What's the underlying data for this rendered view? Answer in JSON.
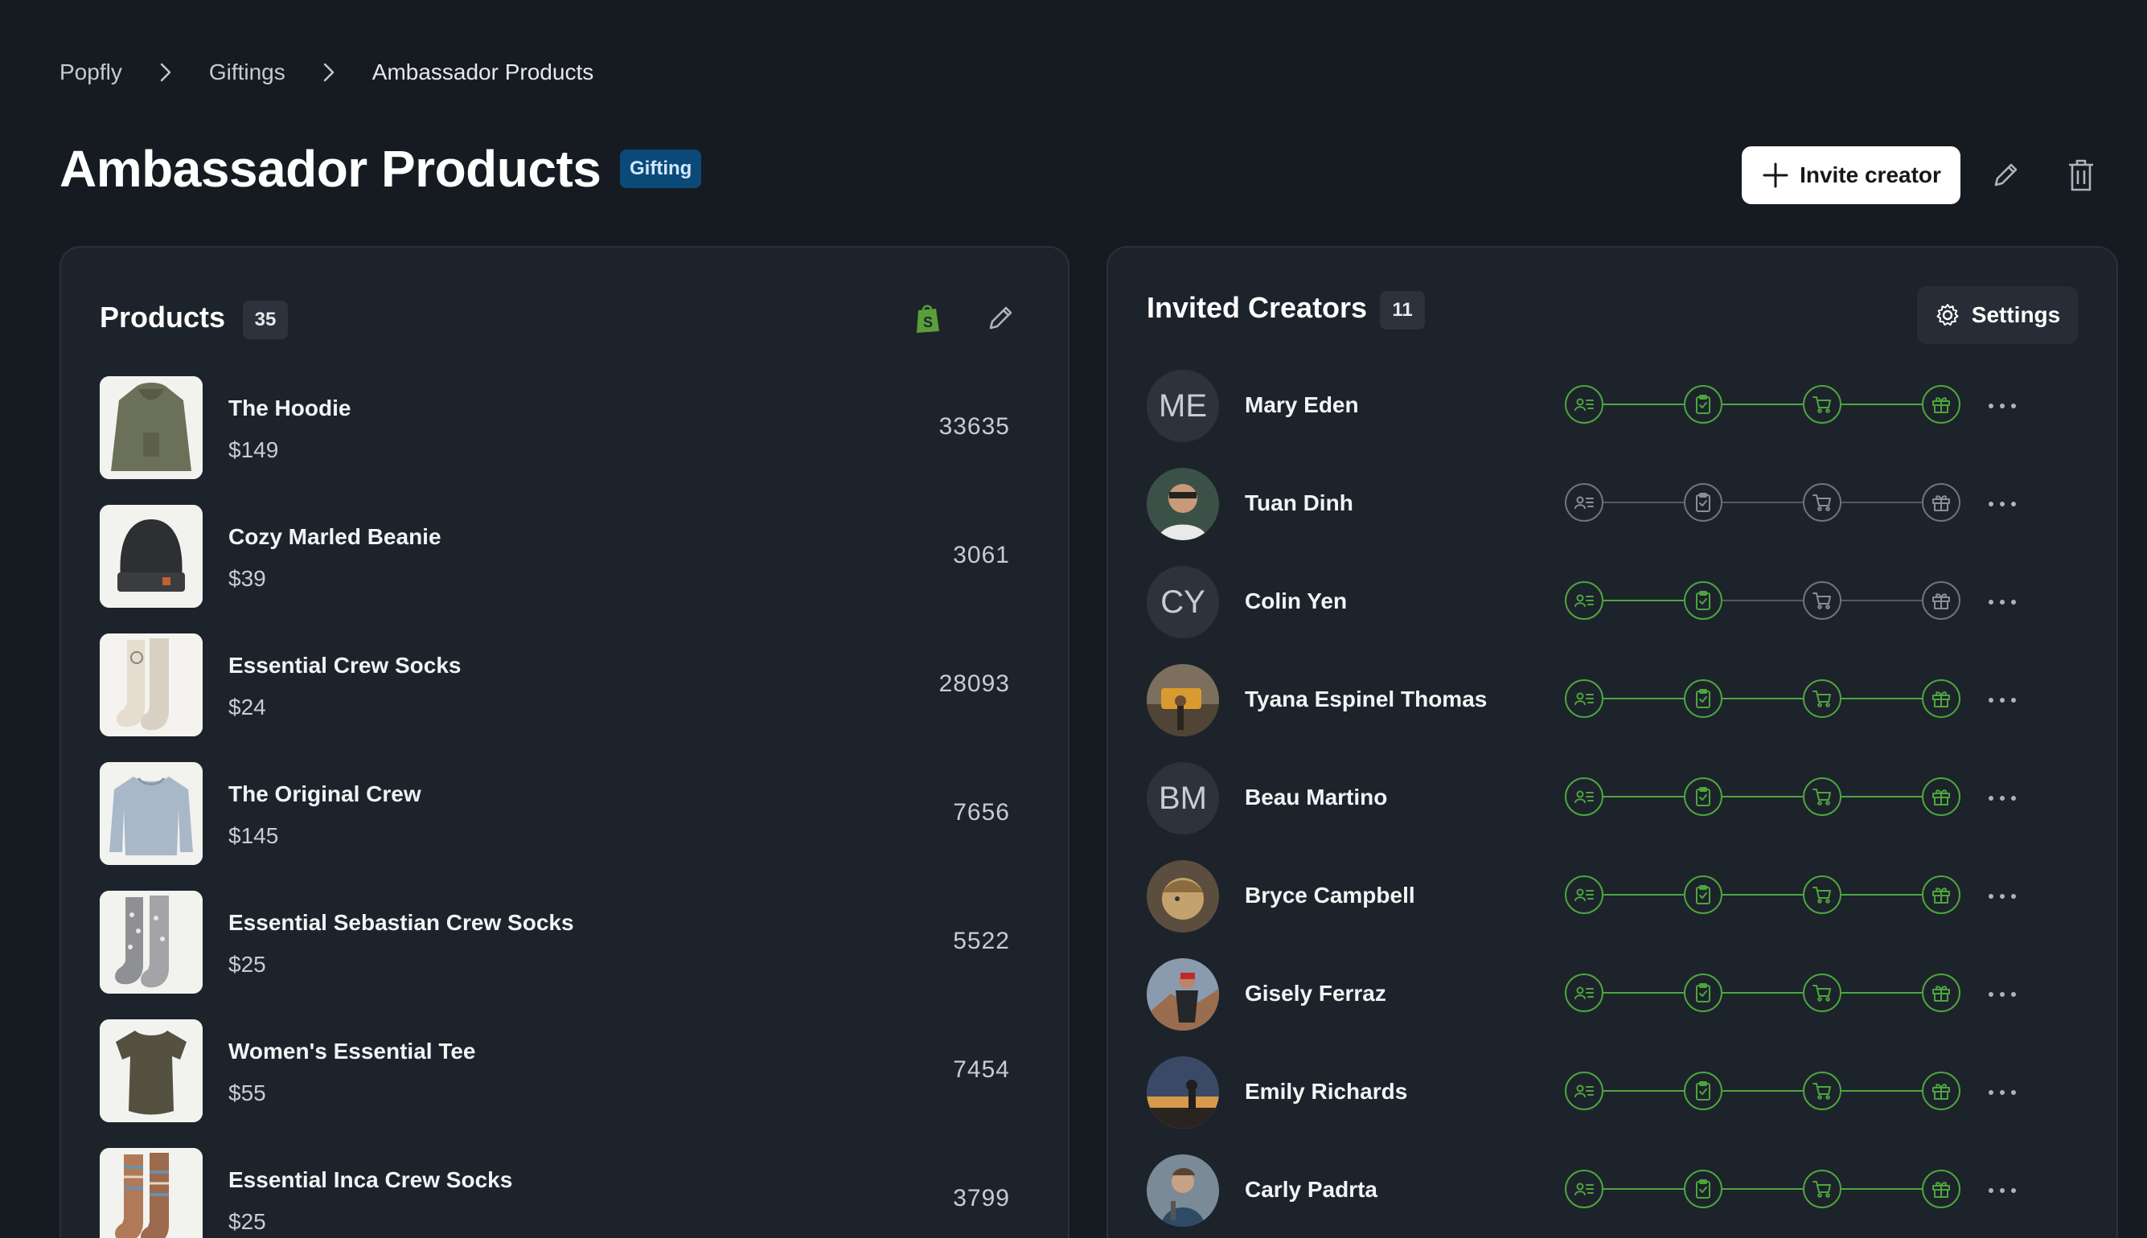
{
  "breadcrumb": [
    "Popfly",
    "Giftings",
    "Ambassador Products"
  ],
  "header": {
    "title": "Ambassador Products",
    "badge": "Gifting",
    "invite_label": "Invite creator"
  },
  "products_panel": {
    "title": "Products",
    "count": "35",
    "items": [
      {
        "name": "The Hoodie",
        "price": "$149",
        "qty": "33635"
      },
      {
        "name": "Cozy Marled Beanie",
        "price": "$39",
        "qty": "3061"
      },
      {
        "name": "Essential Crew Socks",
        "price": "$24",
        "qty": "28093"
      },
      {
        "name": "The Original Crew",
        "price": "$145",
        "qty": "7656"
      },
      {
        "name": "Essential Sebastian Crew Socks",
        "price": "$25",
        "qty": "5522"
      },
      {
        "name": "Women's Essential Tee",
        "price": "$55",
        "qty": "7454"
      },
      {
        "name": "Essential Inca Crew Socks",
        "price": "$25",
        "qty": "3799"
      }
    ]
  },
  "creators_panel": {
    "title": "Invited Creators",
    "count": "11",
    "settings_label": "Settings",
    "step_icons": [
      "profile-card-icon",
      "clipboard-check-icon",
      "cart-icon",
      "gift-icon"
    ],
    "creators": [
      {
        "name": "Mary Eden",
        "initials": "ME",
        "steps_done": 4
      },
      {
        "name": "Tuan Dinh",
        "initials": "",
        "steps_done": 0
      },
      {
        "name": "Colin Yen",
        "initials": "CY",
        "steps_done": 2
      },
      {
        "name": "Tyana Espinel Thomas",
        "initials": "",
        "steps_done": 4
      },
      {
        "name": "Beau Martino",
        "initials": "BM",
        "steps_done": 4
      },
      {
        "name": "Bryce Campbell",
        "initials": "",
        "steps_done": 4
      },
      {
        "name": "Gisely Ferraz",
        "initials": "",
        "steps_done": 4
      },
      {
        "name": "Emily Richards",
        "initials": "",
        "steps_done": 4
      },
      {
        "name": "Carly Padrta",
        "initials": "",
        "steps_done": 4
      }
    ]
  },
  "colors": {
    "background": "#161b22",
    "panel": "#1d232b",
    "badge": "#0b4a78",
    "success": "#4ca63d",
    "shopify": "#5a9e3a"
  }
}
